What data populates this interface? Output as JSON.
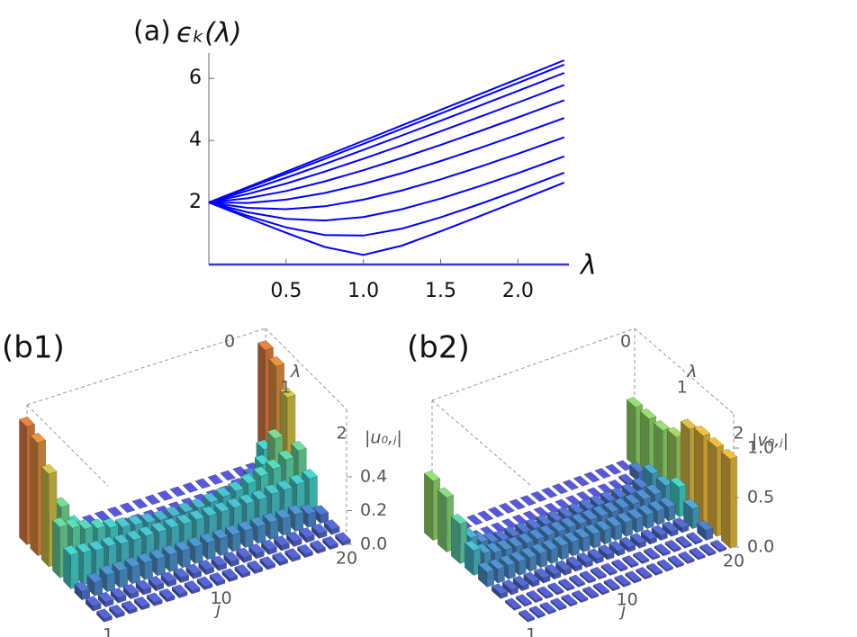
{
  "chart_data": [
    {
      "type": "line",
      "panel_label": "(a)",
      "ylabel": "ϵₖ(λ)",
      "xlabel": "λ",
      "color": "#0000ff",
      "x": [
        0,
        0.25,
        0.5,
        0.75,
        1,
        1.25,
        1.5,
        1.75,
        2,
        2.3
      ],
      "series": [
        {
          "values": [
            2,
            1.508,
            1.024,
            0.567,
            0.31,
            0.608,
            1.07,
            1.555,
            2.047,
            2.642
          ]
        },
        {
          "values": [
            2,
            1.571,
            1.198,
            0.951,
            0.934,
            1.158,
            1.519,
            1.943,
            2.397,
            2.96
          ]
        },
        {
          "values": [
            2,
            1.684,
            1.474,
            1.417,
            1.531,
            1.783,
            2.125,
            2.52,
            2.948,
            3.486
          ]
        },
        {
          "values": [
            2,
            1.828,
            1.784,
            1.878,
            2.09,
            2.39,
            2.748,
            3.145,
            3.569,
            4.1
          ]
        },
        {
          "values": [
            2,
            1.984,
            2.092,
            2.305,
            2.598,
            2.948,
            3.336,
            3.75,
            4.184,
            4.721
          ]
        },
        {
          "values": [
            2,
            2.136,
            2.371,
            2.681,
            3.041,
            3.437,
            3.856,
            4.293,
            4.743,
            5.295
          ]
        },
        {
          "values": [
            2,
            2.271,
            2.611,
            2.996,
            3.411,
            3.846,
            4.295,
            4.755,
            5.222,
            5.789
          ]
        },
        {
          "values": [
            2,
            2.38,
            2.798,
            3.239,
            3.695,
            4.162,
            4.635,
            5.114,
            5.596,
            6.178
          ]
        },
        {
          "values": [
            2,
            2.456,
            2.926,
            3.405,
            3.89,
            4.377,
            4.867,
            5.359,
            5.853,
            6.446
          ]
        },
        {
          "values": [
            2,
            2.495,
            2.992,
            3.49,
            3.988,
            4.487,
            4.986,
            5.485,
            5.984,
            6.583
          ]
        }
      ],
      "xlim": [
        0,
        2.33
      ],
      "ylim": [
        0,
        6.7
      ],
      "xticks": [
        0.5,
        {
          "value": 1,
          "label": "1.0"
        },
        1.5,
        {
          "value": 2,
          "label": "2.0"
        }
      ],
      "yticks": [
        2,
        4,
        6
      ]
    },
    {
      "type": "bar3d",
      "panel_label": "(b1)",
      "xlabel": "j",
      "ylabel": "λ",
      "zlabel": "|u₀,ⱼ|",
      "colormap": [
        "#5858d8",
        "#48d8d0",
        "#98e070",
        "#f0c040",
        "#e04848"
      ],
      "x": [
        1,
        2,
        3,
        4,
        5,
        6,
        7,
        8,
        9,
        10,
        11,
        12,
        13,
        14,
        15,
        16,
        17,
        18,
        19,
        20
      ],
      "lambda": [
        0,
        0.3,
        0.6,
        0.9,
        1.2,
        1.5,
        1.8,
        2.1
      ],
      "values": [
        [
          0.7,
          0,
          0,
          0,
          0,
          0,
          0,
          0,
          0,
          0,
          0,
          0,
          0,
          0,
          0,
          0,
          0,
          0,
          0,
          0.7
        ],
        [
          0.67,
          0.2,
          0.06,
          0.02,
          0,
          0,
          0,
          0,
          0,
          0,
          0,
          0,
          0,
          0,
          0,
          0,
          0.02,
          0.06,
          0.2,
          0.67
        ],
        [
          0.55,
          0.33,
          0.2,
          0.12,
          0.07,
          0.04,
          0.03,
          0.02,
          0.02,
          0.02,
          0.02,
          0.02,
          0.02,
          0.03,
          0.04,
          0.07,
          0.12,
          0.2,
          0.33,
          0.55
        ],
        [
          0.3,
          0.27,
          0.24,
          0.22,
          0.2,
          0.18,
          0.17,
          0.16,
          0.15,
          0.15,
          0.15,
          0.15,
          0.16,
          0.17,
          0.18,
          0.2,
          0.22,
          0.24,
          0.27,
          0.3
        ],
        [
          0.2,
          0.19,
          0.18,
          0.18,
          0.17,
          0.17,
          0.17,
          0.17,
          0.17,
          0.17,
          0.17,
          0.17,
          0.17,
          0.17,
          0.17,
          0.17,
          0.18,
          0.18,
          0.19,
          0.2
        ],
        [
          0.05,
          0.08,
          0.1,
          0.1,
          0.1,
          0.1,
          0.1,
          0.1,
          0.1,
          0.1,
          0.1,
          0.1,
          0.1,
          0.1,
          0.1,
          0.1,
          0.1,
          0.1,
          0.08,
          0.05
        ],
        [
          0.03,
          0.03,
          0.03,
          0.03,
          0.03,
          0.03,
          0.03,
          0.03,
          0.03,
          0.03,
          0.03,
          0.03,
          0.03,
          0.03,
          0.03,
          0.03,
          0.03,
          0.03,
          0.03,
          0.03
        ],
        [
          0.02,
          0.02,
          0.02,
          0.02,
          0.02,
          0.02,
          0.02,
          0.02,
          0.02,
          0.02,
          0.02,
          0.02,
          0.02,
          0.02,
          0.02,
          0.02,
          0.02,
          0.02,
          0.02,
          0.02
        ]
      ],
      "ylim": [
        0,
        2.2
      ],
      "zlim": [
        0,
        0.8
      ],
      "xticks": [
        1,
        10,
        20
      ],
      "yticks": [
        0,
        1,
        2
      ],
      "zticks": [
        {
          "value": 0,
          "label": "0.0"
        },
        {
          "value": 0.2,
          "label": "0.2"
        },
        {
          "value": 0.4,
          "label": "0.4"
        }
      ]
    },
    {
      "type": "bar3d",
      "panel_label": "(b2)",
      "xlabel": "j",
      "ylabel": "λ",
      "zlabel": "|v₀,ⱼ|",
      "colormap": [
        "#5858d8",
        "#48d8d0",
        "#98e070",
        "#f0c040",
        "#e04848"
      ],
      "x": [
        1,
        2,
        3,
        4,
        5,
        6,
        7,
        8,
        9,
        10,
        11,
        12,
        13,
        14,
        15,
        16,
        17,
        18,
        19,
        20
      ],
      "lambda": [
        0,
        0.3,
        0.6,
        0.9,
        1.2,
        1.5,
        1.8,
        2.1
      ],
      "values": [
        [
          0.6,
          0,
          0,
          0,
          0,
          0,
          0,
          0,
          0,
          0,
          0,
          0,
          0,
          0,
          0,
          0,
          0,
          0,
          0,
          0.6
        ],
        [
          0.55,
          0.15,
          0.04,
          0,
          0,
          0,
          0,
          0,
          0,
          0,
          0,
          0,
          0,
          0,
          0,
          0,
          0,
          0.02,
          0.1,
          0.6
        ],
        [
          0.4,
          0.22,
          0.14,
          0.1,
          0.08,
          0.08,
          0.08,
          0.08,
          0.08,
          0.08,
          0.08,
          0.08,
          0.08,
          0.08,
          0.08,
          0.08,
          0.08,
          0.1,
          0.2,
          0.6
        ],
        [
          0.25,
          0.18,
          0.15,
          0.14,
          0.13,
          0.13,
          0.13,
          0.13,
          0.13,
          0.13,
          0.13,
          0.13,
          0.13,
          0.13,
          0.13,
          0.13,
          0.14,
          0.15,
          0.2,
          0.65
        ],
        [
          0.15,
          0.14,
          0.14,
          0.14,
          0.14,
          0.14,
          0.14,
          0.14,
          0.14,
          0.14,
          0.14,
          0.14,
          0.14,
          0.14,
          0.14,
          0.14,
          0.14,
          0.14,
          0.3,
          0.85
        ],
        [
          0.05,
          0.05,
          0.05,
          0.05,
          0.05,
          0.05,
          0.05,
          0.05,
          0.05,
          0.05,
          0.05,
          0.05,
          0.05,
          0.05,
          0.05,
          0.05,
          0.05,
          0.05,
          0.2,
          0.9
        ],
        [
          0.02,
          0.02,
          0.02,
          0.02,
          0.02,
          0.02,
          0.02,
          0.02,
          0.02,
          0.02,
          0.02,
          0.02,
          0.02,
          0.02,
          0.02,
          0.02,
          0.02,
          0.02,
          0.1,
          0.9
        ],
        [
          0.02,
          0.02,
          0.02,
          0.02,
          0.02,
          0.02,
          0.02,
          0.02,
          0.02,
          0.02,
          0.02,
          0.02,
          0.02,
          0.02,
          0.02,
          0.02,
          0.02,
          0.02,
          0.02,
          0.9
        ]
      ],
      "ylim": [
        0,
        2.2
      ],
      "zlim": [
        0,
        1.2
      ],
      "xticks": [
        1,
        10,
        20
      ],
      "yticks": [
        0,
        1,
        2
      ],
      "zticks": [
        {
          "value": 0,
          "label": "0.0"
        },
        {
          "value": 0.5,
          "label": "0.5"
        },
        {
          "value": 1,
          "label": "1.0"
        }
      ]
    }
  ]
}
